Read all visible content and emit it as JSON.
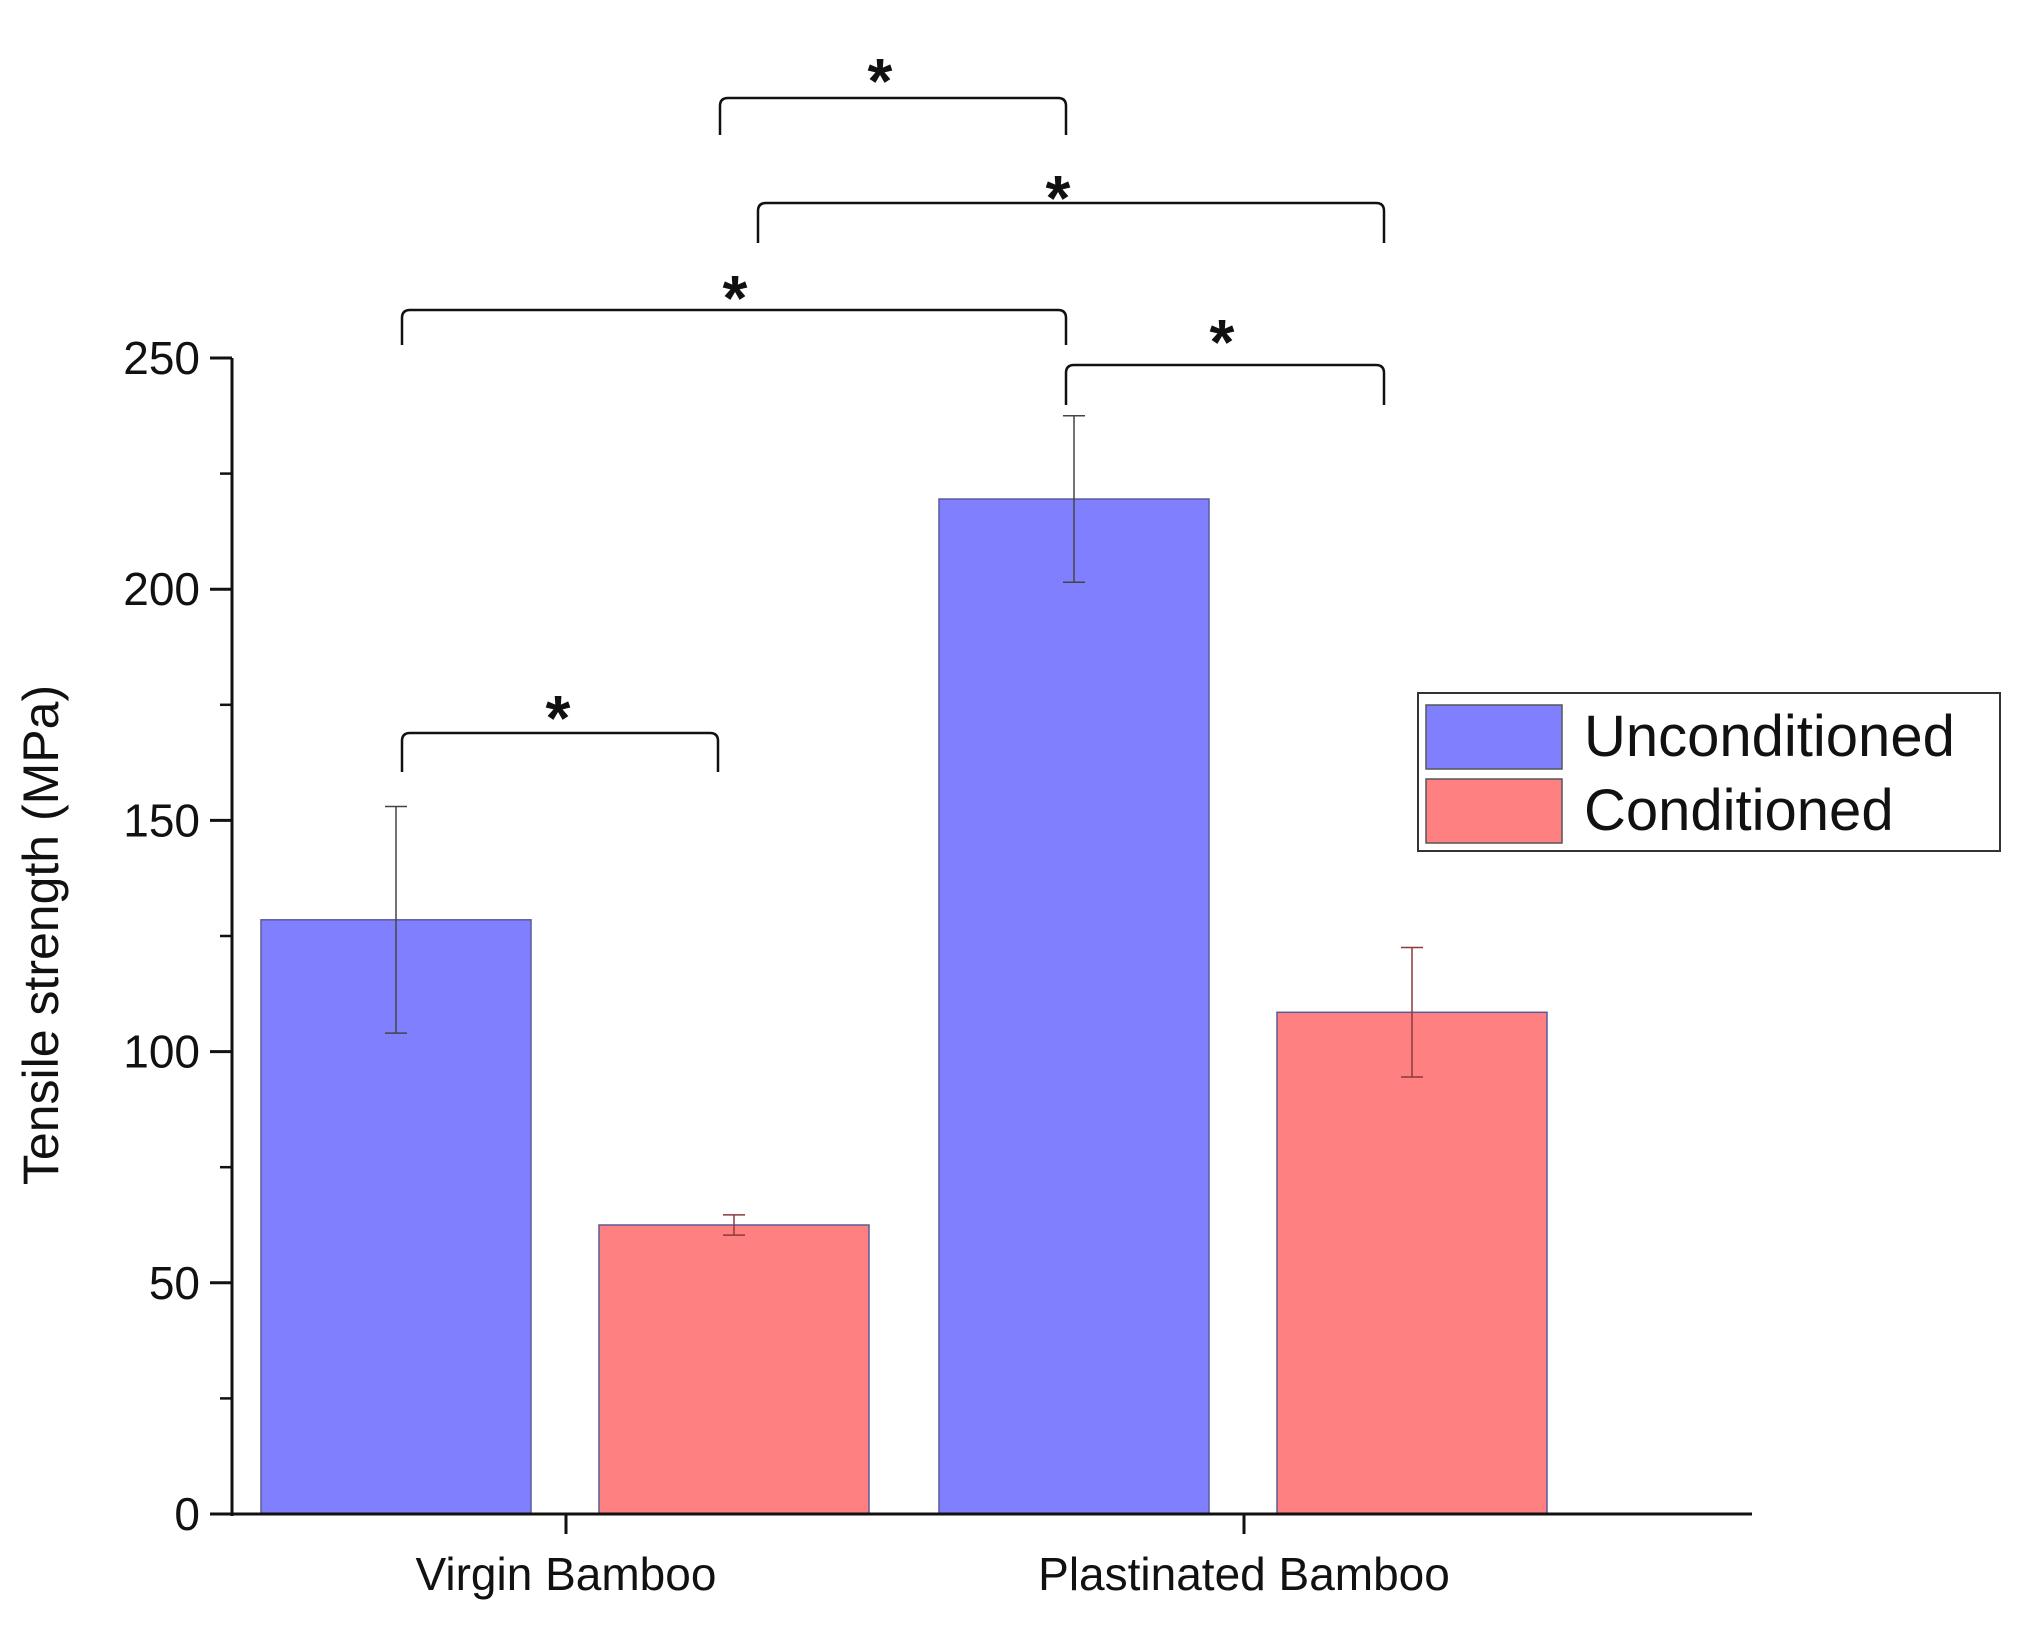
{
  "chart_data": {
    "type": "bar",
    "title": "",
    "xlabel": "",
    "ylabel": "Tensile strength (MPa)",
    "ylim": [
      0,
      250
    ],
    "yticks": [
      0,
      50,
      100,
      150,
      200,
      250
    ],
    "yticks_text": [
      "0",
      "50",
      "100",
      "150",
      "200",
      "250"
    ],
    "categories": [
      "Virgin Bamboo",
      "Plastinated Bamboo"
    ],
    "series": [
      {
        "name": "Unconditioned",
        "color": "#8080ff",
        "values": [
          128.5,
          219.5
        ],
        "errors": [
          24.5,
          18
        ]
      },
      {
        "name": "Conditioned",
        "color": "#ff8080",
        "values": [
          62.5,
          108.5
        ],
        "errors": [
          2.2,
          14
        ]
      }
    ],
    "legend": {
      "location": "right",
      "entries": [
        "Unconditioned",
        "Conditioned"
      ]
    },
    "significance": [
      {
        "from": [
          0,
          0
        ],
        "to": [
          0,
          1
        ],
        "label": "*"
      },
      {
        "from": [
          0,
          0
        ],
        "to": [
          1,
          0
        ],
        "label": "*"
      },
      {
        "from": [
          1,
          0
        ],
        "to": [
          1,
          1
        ],
        "label": "*"
      },
      {
        "from": [
          0,
          1
        ],
        "to": [
          1,
          1
        ],
        "label": "*"
      },
      {
        "from": [
          0,
          1
        ],
        "to": [
          1,
          0
        ],
        "label": "*"
      }
    ]
  }
}
